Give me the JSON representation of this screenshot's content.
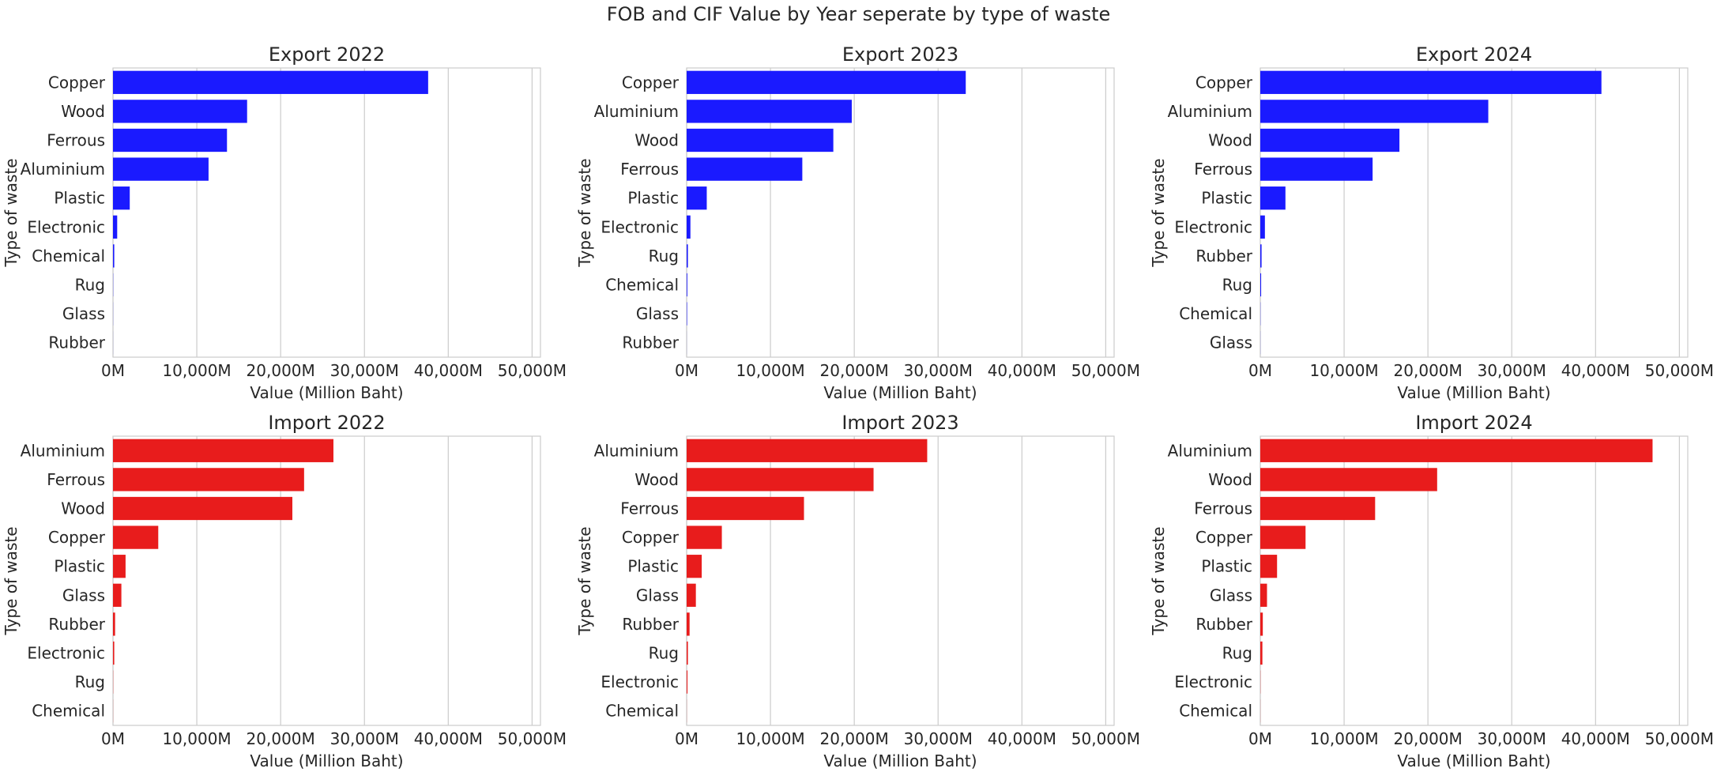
{
  "figure": {
    "title": "FOB and CIF Value by Year seperate by type of waste"
  },
  "chart_data": [
    {
      "type": "bar",
      "orientation": "horizontal",
      "title": "Export 2022",
      "xlabel": "Value (Million Baht)",
      "ylabel": "Type of waste",
      "xlim": [
        0,
        51000
      ],
      "xticks": [
        0,
        10000,
        20000,
        30000,
        40000,
        50000
      ],
      "xtick_labels": [
        "0M",
        "10,000M",
        "20,000M",
        "30,000M",
        "40,000M",
        "50,000M"
      ],
      "grid": "vertical",
      "bar_color": "#1a1aff",
      "categories": [
        "Copper",
        "Wood",
        "Ferrous",
        "Aluminium",
        "Plastic",
        "Electronic",
        "Chemical",
        "Rug",
        "Glass",
        "Rubber"
      ],
      "values": [
        37600,
        16000,
        13600,
        11400,
        2000,
        500,
        150,
        20,
        10,
        5
      ]
    },
    {
      "type": "bar",
      "orientation": "horizontal",
      "title": "Export 2023",
      "xlabel": "Value (Million Baht)",
      "ylabel": "Type of waste",
      "xlim": [
        0,
        51000
      ],
      "xticks": [
        0,
        10000,
        20000,
        30000,
        40000,
        50000
      ],
      "xtick_labels": [
        "0M",
        "10,000M",
        "20,000M",
        "30,000M",
        "40,000M",
        "50,000M"
      ],
      "grid": "vertical",
      "bar_color": "#1a1aff",
      "categories": [
        "Copper",
        "Aluminium",
        "Wood",
        "Ferrous",
        "Plastic",
        "Electronic",
        "Rug",
        "Chemical",
        "Glass",
        "Rubber"
      ],
      "values": [
        33300,
        19700,
        17500,
        13800,
        2400,
        450,
        150,
        80,
        50,
        5
      ]
    },
    {
      "type": "bar",
      "orientation": "horizontal",
      "title": "Export 2024",
      "xlabel": "Value (Million Baht)",
      "ylabel": "Type of waste",
      "xlim": [
        0,
        51000
      ],
      "xticks": [
        0,
        10000,
        20000,
        30000,
        40000,
        50000
      ],
      "xtick_labels": [
        "0M",
        "10,000M",
        "20,000M",
        "30,000M",
        "40,000M",
        "50,000M"
      ],
      "grid": "vertical",
      "bar_color": "#1a1aff",
      "categories": [
        "Copper",
        "Aluminium",
        "Wood",
        "Ferrous",
        "Plastic",
        "Electronic",
        "Rubber",
        "Rug",
        "Chemical",
        "Glass"
      ],
      "values": [
        40700,
        27200,
        16600,
        13400,
        3000,
        550,
        150,
        100,
        20,
        10
      ]
    },
    {
      "type": "bar",
      "orientation": "horizontal",
      "title": "Import 2022",
      "xlabel": "Value (Million Baht)",
      "ylabel": "Type of waste",
      "xlim": [
        0,
        51000
      ],
      "xticks": [
        0,
        10000,
        20000,
        30000,
        40000,
        50000
      ],
      "xtick_labels": [
        "0M",
        "10,000M",
        "20,000M",
        "30,000M",
        "40,000M",
        "50,000M"
      ],
      "grid": "vertical",
      "bar_color": "#e81c1c",
      "categories": [
        "Aluminium",
        "Ferrous",
        "Wood",
        "Copper",
        "Plastic",
        "Glass",
        "Rubber",
        "Electronic",
        "Rug",
        "Chemical"
      ],
      "values": [
        26300,
        22800,
        21400,
        5400,
        1500,
        1000,
        250,
        150,
        20,
        10
      ]
    },
    {
      "type": "bar",
      "orientation": "horizontal",
      "title": "Import 2023",
      "xlabel": "Value (Million Baht)",
      "ylabel": "Type of waste",
      "xlim": [
        0,
        51000
      ],
      "xticks": [
        0,
        10000,
        20000,
        30000,
        40000,
        50000
      ],
      "xtick_labels": [
        "0M",
        "10,000M",
        "20,000M",
        "30,000M",
        "40,000M",
        "50,000M"
      ],
      "grid": "vertical",
      "bar_color": "#e81c1c",
      "categories": [
        "Aluminium",
        "Wood",
        "Ferrous",
        "Copper",
        "Plastic",
        "Glass",
        "Rubber",
        "Rug",
        "Electronic",
        "Chemical"
      ],
      "values": [
        28700,
        22300,
        14000,
        4200,
        1800,
        1100,
        350,
        150,
        100,
        10
      ]
    },
    {
      "type": "bar",
      "orientation": "horizontal",
      "title": "Import 2024",
      "xlabel": "Value (Million Baht)",
      "ylabel": "Type of waste",
      "xlim": [
        0,
        51000
      ],
      "xticks": [
        0,
        10000,
        20000,
        30000,
        40000,
        50000
      ],
      "xtick_labels": [
        "0M",
        "10,000M",
        "20,000M",
        "30,000M",
        "40,000M",
        "50,000M"
      ],
      "grid": "vertical",
      "bar_color": "#e81c1c",
      "categories": [
        "Aluminium",
        "Wood",
        "Ferrous",
        "Copper",
        "Plastic",
        "Glass",
        "Rubber",
        "Rug",
        "Electronic",
        "Chemical"
      ],
      "values": [
        46800,
        21100,
        13700,
        5400,
        2000,
        800,
        300,
        250,
        20,
        10
      ]
    }
  ]
}
